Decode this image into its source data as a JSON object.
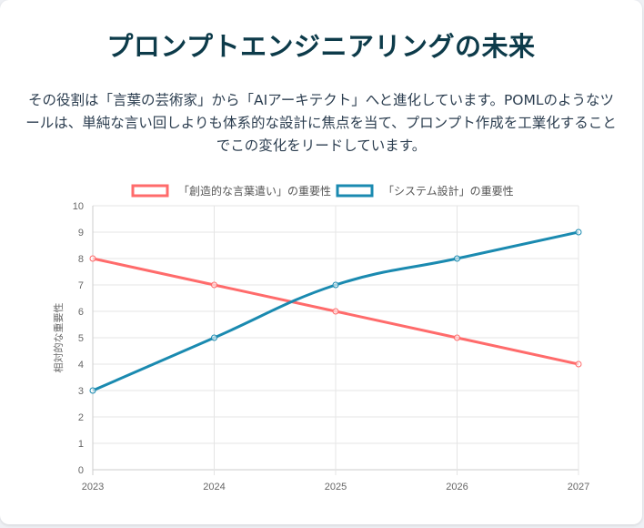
{
  "card": {
    "title": "プロンプトエンジニアリングの未来",
    "description": "その役割は「言葉の芸術家」から「AIアーキテクト」へと進化しています。POMLのようなツールは、単純な言い回しよりも体系的な設計に焦点を当て、プロンプト作成を工業化することでこの変化をリードしています。"
  },
  "chart_data": {
    "type": "line",
    "title": "",
    "xlabel": "",
    "ylabel": "相対的な重要性",
    "categories": [
      "2023",
      "2024",
      "2025",
      "2026",
      "2027"
    ],
    "ylim": [
      0,
      10
    ],
    "yticks": [
      "0",
      "1",
      "2",
      "3",
      "4",
      "5",
      "6",
      "7",
      "8",
      "9",
      "10"
    ],
    "grid": true,
    "legend_position": "top",
    "series": [
      {
        "name": "「創造的な言葉遣い」の重要性",
        "values": [
          8,
          7,
          6,
          5,
          4
        ],
        "color": "#ff6b6b",
        "curved": false
      },
      {
        "name": "「システム設計」の重要性",
        "values": [
          3,
          5,
          7,
          8,
          9
        ],
        "color": "#1a8ab0",
        "curved": true
      }
    ]
  }
}
